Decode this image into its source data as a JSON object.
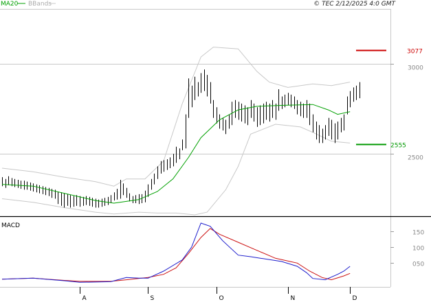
{
  "header": {
    "legend_ma": "MA20",
    "legend_bb": "BBands",
    "copyright": "© TEC 2/12/2025 4:0 GMT"
  },
  "colors": {
    "ma": "#00a000",
    "bb": "#c8c8c8",
    "bars": "#000000",
    "macd": "#1a1acc",
    "signal": "#cc1111",
    "grid": "#c8c8c8",
    "level_high": "#cc0000",
    "level_low": "#009900"
  },
  "levels": {
    "high": {
      "value": 3077,
      "label": "3077"
    },
    "low": {
      "value": 2555,
      "label": "2555"
    }
  },
  "macd_panel": {
    "title": "MACD"
  },
  "chart_data": [
    {
      "type": "ohlc",
      "title": "",
      "y_ticks": [
        {
          "value": 3000,
          "label": "3000"
        },
        {
          "value": 2500,
          "label": "2500"
        }
      ],
      "ylim": [
        2160,
        3300
      ],
      "x_labels": [
        {
          "index": 25,
          "label": "A"
        },
        {
          "index": 47,
          "label": "S"
        },
        {
          "index": 69,
          "label": "O"
        },
        {
          "index": 92,
          "label": "N"
        },
        {
          "index": 112,
          "label": "D"
        }
      ],
      "bars": [
        {
          "h": 2370,
          "l": 2320
        },
        {
          "h": 2360,
          "l": 2310
        },
        {
          "h": 2375,
          "l": 2325
        },
        {
          "h": 2365,
          "l": 2320
        },
        {
          "h": 2360,
          "l": 2315
        },
        {
          "h": 2355,
          "l": 2310
        },
        {
          "h": 2350,
          "l": 2305
        },
        {
          "h": 2350,
          "l": 2300
        },
        {
          "h": 2345,
          "l": 2300
        },
        {
          "h": 2340,
          "l": 2295
        },
        {
          "h": 2335,
          "l": 2290
        },
        {
          "h": 2330,
          "l": 2285
        },
        {
          "h": 2325,
          "l": 2280
        },
        {
          "h": 2320,
          "l": 2275
        },
        {
          "h": 2315,
          "l": 2270
        },
        {
          "h": 2310,
          "l": 2265
        },
        {
          "h": 2305,
          "l": 2255
        },
        {
          "h": 2300,
          "l": 2250
        },
        {
          "h": 2290,
          "l": 2220
        },
        {
          "h": 2285,
          "l": 2210
        },
        {
          "h": 2280,
          "l": 2200
        },
        {
          "h": 2275,
          "l": 2210
        },
        {
          "h": 2270,
          "l": 2200
        },
        {
          "h": 2265,
          "l": 2205
        },
        {
          "h": 2270,
          "l": 2210
        },
        {
          "h": 2265,
          "l": 2205
        },
        {
          "h": 2260,
          "l": 2210
        },
        {
          "h": 2265,
          "l": 2215
        },
        {
          "h": 2260,
          "l": 2210
        },
        {
          "h": 2255,
          "l": 2205
        },
        {
          "h": 2250,
          "l": 2200
        },
        {
          "h": 2245,
          "l": 2200
        },
        {
          "h": 2250,
          "l": 2205
        },
        {
          "h": 2255,
          "l": 2210
        },
        {
          "h": 2260,
          "l": 2215
        },
        {
          "h": 2270,
          "l": 2225
        },
        {
          "h": 2285,
          "l": 2240
        },
        {
          "h": 2305,
          "l": 2245
        },
        {
          "h": 2355,
          "l": 2250
        },
        {
          "h": 2335,
          "l": 2270
        },
        {
          "h": 2310,
          "l": 2255
        },
        {
          "h": 2280,
          "l": 2235
        },
        {
          "h": 2265,
          "l": 2225
        },
        {
          "h": 2270,
          "l": 2225
        },
        {
          "h": 2275,
          "l": 2220
        },
        {
          "h": 2275,
          "l": 2225
        },
        {
          "h": 2295,
          "l": 2230
        },
        {
          "h": 2330,
          "l": 2260
        },
        {
          "h": 2360,
          "l": 2300
        },
        {
          "h": 2390,
          "l": 2330
        },
        {
          "h": 2430,
          "l": 2360
        },
        {
          "h": 2460,
          "l": 2390
        },
        {
          "h": 2465,
          "l": 2400
        },
        {
          "h": 2470,
          "l": 2410
        },
        {
          "h": 2480,
          "l": 2420
        },
        {
          "h": 2500,
          "l": 2430
        },
        {
          "h": 2540,
          "l": 2450
        },
        {
          "h": 2530,
          "l": 2470
        },
        {
          "h": 2580,
          "l": 2520
        },
        {
          "h": 2720,
          "l": 2530
        },
        {
          "h": 2920,
          "l": 2700
        },
        {
          "h": 2880,
          "l": 2760
        },
        {
          "h": 2930,
          "l": 2800
        },
        {
          "h": 2900,
          "l": 2820
        },
        {
          "h": 2950,
          "l": 2840
        },
        {
          "h": 2970,
          "l": 2850
        },
        {
          "h": 2940,
          "l": 2820
        },
        {
          "h": 2900,
          "l": 2780
        },
        {
          "h": 2800,
          "l": 2700
        },
        {
          "h": 2760,
          "l": 2670
        },
        {
          "h": 2720,
          "l": 2640
        },
        {
          "h": 2700,
          "l": 2630
        },
        {
          "h": 2690,
          "l": 2610
        },
        {
          "h": 2720,
          "l": 2640
        },
        {
          "h": 2790,
          "l": 2660
        },
        {
          "h": 2800,
          "l": 2700
        },
        {
          "h": 2790,
          "l": 2690
        },
        {
          "h": 2780,
          "l": 2680
        },
        {
          "h": 2770,
          "l": 2670
        },
        {
          "h": 2760,
          "l": 2660
        },
        {
          "h": 2800,
          "l": 2700
        },
        {
          "h": 2780,
          "l": 2680
        },
        {
          "h": 2760,
          "l": 2650
        },
        {
          "h": 2770,
          "l": 2660
        },
        {
          "h": 2780,
          "l": 2670
        },
        {
          "h": 2790,
          "l": 2690
        },
        {
          "h": 2780,
          "l": 2680
        },
        {
          "h": 2800,
          "l": 2700
        },
        {
          "h": 2780,
          "l": 2690
        },
        {
          "h": 2860,
          "l": 2740
        },
        {
          "h": 2820,
          "l": 2750
        },
        {
          "h": 2830,
          "l": 2760
        },
        {
          "h": 2840,
          "l": 2770
        },
        {
          "h": 2830,
          "l": 2760
        },
        {
          "h": 2820,
          "l": 2750
        },
        {
          "h": 2800,
          "l": 2720
        },
        {
          "h": 2790,
          "l": 2710
        },
        {
          "h": 2780,
          "l": 2700
        },
        {
          "h": 2800,
          "l": 2700
        },
        {
          "h": 2780,
          "l": 2660
        },
        {
          "h": 2720,
          "l": 2620
        },
        {
          "h": 2680,
          "l": 2580
        },
        {
          "h": 2660,
          "l": 2560
        },
        {
          "h": 2640,
          "l": 2560
        },
        {
          "h": 2660,
          "l": 2580
        },
        {
          "h": 2700,
          "l": 2600
        },
        {
          "h": 2690,
          "l": 2580
        },
        {
          "h": 2670,
          "l": 2560
        },
        {
          "h": 2680,
          "l": 2580
        },
        {
          "h": 2700,
          "l": 2620
        },
        {
          "h": 2720,
          "l": 2630
        },
        {
          "h": 2820,
          "l": 2720
        },
        {
          "h": 2850,
          "l": 2760
        },
        {
          "h": 2870,
          "l": 2790
        },
        {
          "h": 2880,
          "l": 2800
        },
        {
          "h": 2900,
          "l": 2810
        }
      ],
      "ma20": [
        {
          "i": 0,
          "v": 2330
        },
        {
          "i": 10,
          "v": 2320
        },
        {
          "i": 20,
          "v": 2280
        },
        {
          "i": 30,
          "v": 2240
        },
        {
          "i": 36,
          "v": 2225
        },
        {
          "i": 44,
          "v": 2245
        },
        {
          "i": 50,
          "v": 2290
        },
        {
          "i": 55,
          "v": 2360
        },
        {
          "i": 60,
          "v": 2480
        },
        {
          "i": 64,
          "v": 2590
        },
        {
          "i": 70,
          "v": 2690
        },
        {
          "i": 76,
          "v": 2745
        },
        {
          "i": 82,
          "v": 2765
        },
        {
          "i": 90,
          "v": 2770
        },
        {
          "i": 100,
          "v": 2775
        },
        {
          "i": 105,
          "v": 2745
        },
        {
          "i": 108,
          "v": 2720
        },
        {
          "i": 112,
          "v": 2735
        }
      ],
      "bb_upper": [
        {
          "i": 0,
          "v": 2420
        },
        {
          "i": 10,
          "v": 2400
        },
        {
          "i": 20,
          "v": 2370
        },
        {
          "i": 30,
          "v": 2345
        },
        {
          "i": 36,
          "v": 2320
        },
        {
          "i": 40,
          "v": 2360
        },
        {
          "i": 46,
          "v": 2360
        },
        {
          "i": 52,
          "v": 2460
        },
        {
          "i": 58,
          "v": 2780
        },
        {
          "i": 64,
          "v": 3040
        },
        {
          "i": 68,
          "v": 3095
        },
        {
          "i": 76,
          "v": 3085
        },
        {
          "i": 82,
          "v": 2960
        },
        {
          "i": 86,
          "v": 2900
        },
        {
          "i": 92,
          "v": 2870
        },
        {
          "i": 100,
          "v": 2890
        },
        {
          "i": 106,
          "v": 2880
        },
        {
          "i": 112,
          "v": 2900
        }
      ],
      "bb_lower": [
        {
          "i": 0,
          "v": 2250
        },
        {
          "i": 10,
          "v": 2230
        },
        {
          "i": 20,
          "v": 2200
        },
        {
          "i": 30,
          "v": 2175
        },
        {
          "i": 36,
          "v": 2165
        },
        {
          "i": 44,
          "v": 2175
        },
        {
          "i": 50,
          "v": 2170
        },
        {
          "i": 56,
          "v": 2170
        },
        {
          "i": 62,
          "v": 2160
        },
        {
          "i": 66,
          "v": 2175
        },
        {
          "i": 72,
          "v": 2300
        },
        {
          "i": 76,
          "v": 2430
        },
        {
          "i": 80,
          "v": 2610
        },
        {
          "i": 88,
          "v": 2665
        },
        {
          "i": 96,
          "v": 2650
        },
        {
          "i": 100,
          "v": 2620
        },
        {
          "i": 106,
          "v": 2570
        },
        {
          "i": 112,
          "v": 2560
        }
      ]
    },
    {
      "type": "line",
      "title": "MACD",
      "y_ticks": [
        {
          "value": 150,
          "label": "150"
        },
        {
          "value": 100,
          "label": "100"
        },
        {
          "value": 50,
          "label": "050"
        }
      ],
      "ylim": [
        -20,
        190
      ],
      "series": [
        {
          "role": "macd",
          "points": [
            {
              "i": 0,
              "v": 0
            },
            {
              "i": 10,
              "v": 3
            },
            {
              "i": 20,
              "v": -5
            },
            {
              "i": 25,
              "v": -10
            },
            {
              "i": 35,
              "v": -8
            },
            {
              "i": 40,
              "v": 5
            },
            {
              "i": 44,
              "v": 3
            },
            {
              "i": 47,
              "v": 3
            },
            {
              "i": 52,
              "v": 25
            },
            {
              "i": 58,
              "v": 60
            },
            {
              "i": 61,
              "v": 100
            },
            {
              "i": 64,
              "v": 175
            },
            {
              "i": 67,
              "v": 165
            },
            {
              "i": 71,
              "v": 120
            },
            {
              "i": 76,
              "v": 75
            },
            {
              "i": 80,
              "v": 70
            },
            {
              "i": 90,
              "v": 55
            },
            {
              "i": 95,
              "v": 40
            },
            {
              "i": 98,
              "v": 20
            },
            {
              "i": 100,
              "v": 2
            },
            {
              "i": 104,
              "v": -2
            },
            {
              "i": 108,
              "v": 15
            },
            {
              "i": 110,
              "v": 25
            },
            {
              "i": 112,
              "v": 40
            }
          ]
        },
        {
          "role": "signal",
          "points": [
            {
              "i": 0,
              "v": 0
            },
            {
              "i": 10,
              "v": 3
            },
            {
              "i": 20,
              "v": -4
            },
            {
              "i": 25,
              "v": -7
            },
            {
              "i": 35,
              "v": -7
            },
            {
              "i": 40,
              "v": -2
            },
            {
              "i": 47,
              "v": 5
            },
            {
              "i": 52,
              "v": 15
            },
            {
              "i": 56,
              "v": 35
            },
            {
              "i": 60,
              "v": 80
            },
            {
              "i": 64,
              "v": 130
            },
            {
              "i": 67,
              "v": 158
            },
            {
              "i": 70,
              "v": 140
            },
            {
              "i": 76,
              "v": 115
            },
            {
              "i": 82,
              "v": 90
            },
            {
              "i": 88,
              "v": 65
            },
            {
              "i": 95,
              "v": 50
            },
            {
              "i": 99,
              "v": 25
            },
            {
              "i": 103,
              "v": 5
            },
            {
              "i": 106,
              "v": -2
            },
            {
              "i": 110,
              "v": 10
            },
            {
              "i": 112,
              "v": 18
            }
          ]
        }
      ]
    }
  ]
}
